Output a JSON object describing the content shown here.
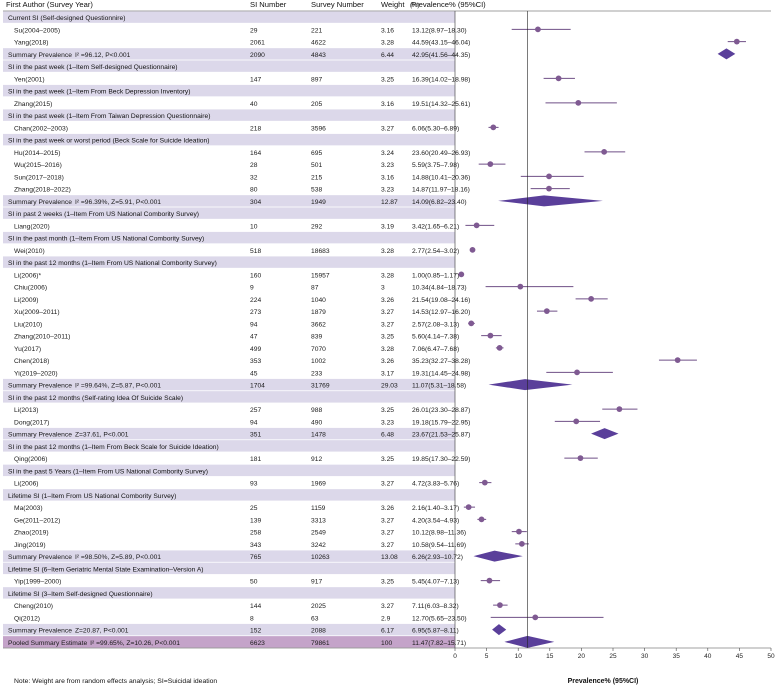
{
  "headers": {
    "study": "First Author (Survey Year)",
    "si_number": "SI Number",
    "survey_number": "Survey Number",
    "weight": "Weight",
    "weight_unit": "(%)",
    "prevalence": "Prevalence% (95%CI)"
  },
  "chart_data": {
    "type": "forest",
    "xlim": [
      0,
      50
    ],
    "xticks": [
      0,
      5,
      10,
      15,
      20,
      25,
      30,
      35,
      40,
      45,
      50
    ],
    "xlabel": "Prevalence% (95%CI)",
    "reference_line": 11.47,
    "rows": [
      {
        "kind": "section",
        "label": "Current SI (Self-designed Questionnire)"
      },
      {
        "kind": "study",
        "study": "Su(2004–2005)",
        "si": "29",
        "n": "221",
        "weight": "3.16",
        "ci_text": "13.12(8.97–18.30)",
        "est": 13.12,
        "lo": 8.97,
        "hi": 18.3
      },
      {
        "kind": "study",
        "study": "Yang(2018)",
        "si": "2061",
        "n": "4622",
        "weight": "3.28",
        "ci_text": "44.59(43.15–46.04)",
        "est": 44.59,
        "lo": 43.15,
        "hi": 46.04
      },
      {
        "kind": "summary",
        "study": "Summary Prevalence",
        "stat": "I² =96.12, P<0.001",
        "si": "2090",
        "n": "4843",
        "weight": "6.44",
        "ci_text": "42.95(41.56–44.35)",
        "est": 42.95,
        "lo": 41.56,
        "hi": 44.35
      },
      {
        "kind": "section",
        "label": "SI in the past week (1–Item Self-designed Questionnaire)"
      },
      {
        "kind": "study",
        "study": "Yen(2001)",
        "si": "147",
        "n": "897",
        "weight": "3.25",
        "ci_text": "16.39(14.02–18.98)",
        "est": 16.39,
        "lo": 14.02,
        "hi": 18.98
      },
      {
        "kind": "section",
        "label": "SI in the past week (1–Item From Beck Depression Inventory)"
      },
      {
        "kind": "study",
        "study": "Zhang(2015)",
        "si": "40",
        "n": "205",
        "weight": "3.16",
        "ci_text": "19.51(14.32–25.61)",
        "est": 19.51,
        "lo": 14.32,
        "hi": 25.61
      },
      {
        "kind": "section",
        "label": "SI in the past week (1–Item From Taiwan Depression Questionnaire)"
      },
      {
        "kind": "study",
        "study": "Chan(2002–2003)",
        "si": "218",
        "n": "3596",
        "weight": "3.27",
        "ci_text": "6.06(5.30–6.89)",
        "est": 6.06,
        "lo": 5.3,
        "hi": 6.89
      },
      {
        "kind": "section",
        "label": "SI in the past week or worst period (Beck Scale for Suicide Ideation)"
      },
      {
        "kind": "study",
        "study": "Hu(2014–2015)",
        "si": "164",
        "n": "695",
        "weight": "3.24",
        "ci_text": "23.60(20.49–26.93)",
        "est": 23.6,
        "lo": 20.49,
        "hi": 26.93
      },
      {
        "kind": "study",
        "study": "Wu(2015–2016)",
        "si": "28",
        "n": "501",
        "weight": "3.23",
        "ci_text": "5.59(3.75–7.98)",
        "est": 5.59,
        "lo": 3.75,
        "hi": 7.98
      },
      {
        "kind": "study",
        "study": "Sun(2017–2018)",
        "si": "32",
        "n": "215",
        "weight": "3.16",
        "ci_text": "14.88(10.41–20.36)",
        "est": 14.88,
        "lo": 10.41,
        "hi": 20.36
      },
      {
        "kind": "study",
        "study": "Zhang(2018–2022)",
        "si": "80",
        "n": "538",
        "weight": "3.23",
        "ci_text": "14.87(11.97–18.16)",
        "est": 14.87,
        "lo": 11.97,
        "hi": 18.16
      },
      {
        "kind": "summary",
        "study": "Summary Prevalence",
        "stat": "I² =96.39%, Z=5.91, P<0.001",
        "si": "304",
        "n": "1949",
        "weight": "12.87",
        "ci_text": "14.09(6.82–23.40)",
        "est": 14.09,
        "lo": 6.82,
        "hi": 23.4
      },
      {
        "kind": "section",
        "label": "SI in past 2 weeks (1–Item From US National Combority Survey)"
      },
      {
        "kind": "study",
        "study": "Liang(2020)",
        "si": "10",
        "n": "292",
        "weight": "3.19",
        "ci_text": "3.42(1.65–6.21)",
        "est": 3.42,
        "lo": 1.65,
        "hi": 6.21
      },
      {
        "kind": "section",
        "label": "SI in the past month (1–Item From US National Combority Survey)"
      },
      {
        "kind": "study",
        "study": "Wei(2010)",
        "si": "518",
        "n": "18683",
        "weight": "3.28",
        "ci_text": "2.77(2.54–3.02)",
        "est": 2.77,
        "lo": 2.54,
        "hi": 3.02
      },
      {
        "kind": "section",
        "label": "SI in the past 12 months (1–Item From US National Combority Survey)"
      },
      {
        "kind": "study",
        "study": "Li(2006)*",
        "si": "160",
        "n": "15957",
        "weight": "3.28",
        "ci_text": "1.00(0.85–1.17)",
        "est": 1.0,
        "lo": 0.85,
        "hi": 1.17
      },
      {
        "kind": "study",
        "study": "Chiu(2006)",
        "si": "9",
        "n": "87",
        "weight": "3",
        "ci_text": "10.34(4.84–18.73)",
        "est": 10.34,
        "lo": 4.84,
        "hi": 18.73
      },
      {
        "kind": "study",
        "study": "Li(2009)",
        "si": "224",
        "n": "1040",
        "weight": "3.26",
        "ci_text": "21.54(19.08–24.16)",
        "est": 21.54,
        "lo": 19.08,
        "hi": 24.16
      },
      {
        "kind": "study",
        "study": "Xu(2009–2011)",
        "si": "273",
        "n": "1879",
        "weight": "3.27",
        "ci_text": "14.53(12.97–16.20)",
        "est": 14.53,
        "lo": 12.97,
        "hi": 16.2
      },
      {
        "kind": "study",
        "study": "Liu(2010)",
        "si": "94",
        "n": "3662",
        "weight": "3.27",
        "ci_text": "2.57(2.08–3.13)",
        "est": 2.57,
        "lo": 2.08,
        "hi": 3.13
      },
      {
        "kind": "study",
        "study": "Zhang(2010–2011)",
        "si": "47",
        "n": "839",
        "weight": "3.25",
        "ci_text": "5.60(4.14–7.38)",
        "est": 5.6,
        "lo": 4.14,
        "hi": 7.38
      },
      {
        "kind": "study",
        "study": "Yu(2017)",
        "si": "499",
        "n": "7070",
        "weight": "3.28",
        "ci_text": "7.06(6.47–7.68)",
        "est": 7.06,
        "lo": 6.47,
        "hi": 7.68
      },
      {
        "kind": "study",
        "study": "Chen(2018)",
        "si": "353",
        "n": "1002",
        "weight": "3.26",
        "ci_text": "35.23(32.27–38.28)",
        "est": 35.23,
        "lo": 32.27,
        "hi": 38.28
      },
      {
        "kind": "study",
        "study": "Yi(2019–2020)",
        "si": "45",
        "n": "233",
        "weight": "3.17",
        "ci_text": "19.31(14.45–24.98)",
        "est": 19.31,
        "lo": 14.45,
        "hi": 24.98
      },
      {
        "kind": "summary",
        "study": "Summary Prevalence",
        "stat": "I² =99.64%, Z=5.87, P<0.001",
        "si": "1704",
        "n": "31769",
        "weight": "29.03",
        "ci_text": "11.07(5.31–18.58)",
        "est": 11.07,
        "lo": 5.31,
        "hi": 18.58
      },
      {
        "kind": "section",
        "label": "SI in the past 12 months (Self-rating Idea Of Suicide Scale)"
      },
      {
        "kind": "study",
        "study": "Li(2013)",
        "si": "257",
        "n": "988",
        "weight": "3.25",
        "ci_text": "26.01(23.30–28.87)",
        "est": 26.01,
        "lo": 23.3,
        "hi": 28.87
      },
      {
        "kind": "study",
        "study": "Dong(2017)",
        "si": "94",
        "n": "490",
        "weight": "3.23",
        "ci_text": "19.18(15.79–22.95)",
        "est": 19.18,
        "lo": 15.79,
        "hi": 22.95
      },
      {
        "kind": "summary",
        "study": "Summary Prevalence",
        "stat": "Z=37.61, P<0.001",
        "si": "351",
        "n": "1478",
        "weight": "6.48",
        "ci_text": "23.67(21.53–25.87)",
        "est": 23.67,
        "lo": 21.53,
        "hi": 25.87
      },
      {
        "kind": "section",
        "label": "SI in the past 12 months (1–Item From Beck Scale for Suicide Ideation)"
      },
      {
        "kind": "study",
        "study": "Qing(2006)",
        "si": "181",
        "n": "912",
        "weight": "3.25",
        "ci_text": "19.85(17.30–22.59)",
        "est": 19.85,
        "lo": 17.3,
        "hi": 22.59
      },
      {
        "kind": "section",
        "label": "SI in the past 5 Years (1–Item From US National Combority Survey)"
      },
      {
        "kind": "study",
        "study": "Li(2006)",
        "si": "93",
        "n": "1969",
        "weight": "3.27",
        "ci_text": "4.72(3.83–5.76)",
        "est": 4.72,
        "lo": 3.83,
        "hi": 5.76
      },
      {
        "kind": "section",
        "label": "Lifetime SI (1–Item From US National Combority Survey)"
      },
      {
        "kind": "study",
        "study": "Ma(2003)",
        "si": "25",
        "n": "1159",
        "weight": "3.26",
        "ci_text": "2.16(1.40–3.17)",
        "est": 2.16,
        "lo": 1.4,
        "hi": 3.17
      },
      {
        "kind": "study",
        "study": "Ge(2011–2012)",
        "si": "139",
        "n": "3313",
        "weight": "3.27",
        "ci_text": "4.20(3.54–4.93)",
        "est": 4.2,
        "lo": 3.54,
        "hi": 4.93
      },
      {
        "kind": "study",
        "study": "Zhao(2019)",
        "si": "258",
        "n": "2549",
        "weight": "3.27",
        "ci_text": "10.12(8.98–11.36)",
        "est": 10.12,
        "lo": 8.98,
        "hi": 11.36
      },
      {
        "kind": "study",
        "study": "Jing(2019)",
        "si": "343",
        "n": "3242",
        "weight": "3.27",
        "ci_text": "10.58(9.54–11.69)",
        "est": 10.58,
        "lo": 9.54,
        "hi": 11.69
      },
      {
        "kind": "summary",
        "study": "Summary Prevalence",
        "stat": "I² =98.50%, Z=5.89, P<0.001",
        "si": "765",
        "n": "10263",
        "weight": "13.08",
        "ci_text": "6.26(2.93–10.72)",
        "est": 6.26,
        "lo": 2.93,
        "hi": 10.72
      },
      {
        "kind": "section",
        "label": "Lifetime SI (6–Item Geriatric Mental State Examination–Version A)"
      },
      {
        "kind": "study",
        "study": "Yip(1999–2000)",
        "si": "50",
        "n": "917",
        "weight": "3.25",
        "ci_text": "5.45(4.07–7.13)",
        "est": 5.45,
        "lo": 4.07,
        "hi": 7.13
      },
      {
        "kind": "section",
        "label": "Lifetime SI (3–Item Self-designed Questionnaire)"
      },
      {
        "kind": "study",
        "study": "Cheng(2010)",
        "si": "144",
        "n": "2025",
        "weight": "3.27",
        "ci_text": "7.11(6.03–8.32)",
        "est": 7.11,
        "lo": 6.03,
        "hi": 8.32
      },
      {
        "kind": "study",
        "study": "Qi(2012)",
        "si": "8",
        "n": "63",
        "weight": "2.9",
        "ci_text": "12.70(5.65–23.50)",
        "est": 12.7,
        "lo": 5.65,
        "hi": 23.5
      },
      {
        "kind": "summary",
        "study": "Summary Prevalence",
        "stat": "Z=20.87, P<0.001",
        "si": "152",
        "n": "2088",
        "weight": "6.17",
        "ci_text": "6.95(5.87–8.11)",
        "est": 6.95,
        "lo": 5.87,
        "hi": 8.11
      },
      {
        "kind": "pooled",
        "study": "Pooled Summary Estimate",
        "stat": "I² =99.65%, Z=10.26, P<0.001",
        "si": "6623",
        "n": "79861",
        "weight": "100",
        "ci_text": "11.47(7.82–15.71)",
        "est": 11.47,
        "lo": 7.82,
        "hi": 15.71
      }
    ]
  },
  "footnote": "Note: Weight are from random effects analysis; SI=Suicidal ideation",
  "colors": {
    "band": "#dcd8ea",
    "pooled_band": "#c4a3c9",
    "marker": "#7f5a92",
    "diamond": "#5a3f9a",
    "line": "#6f4f86"
  }
}
